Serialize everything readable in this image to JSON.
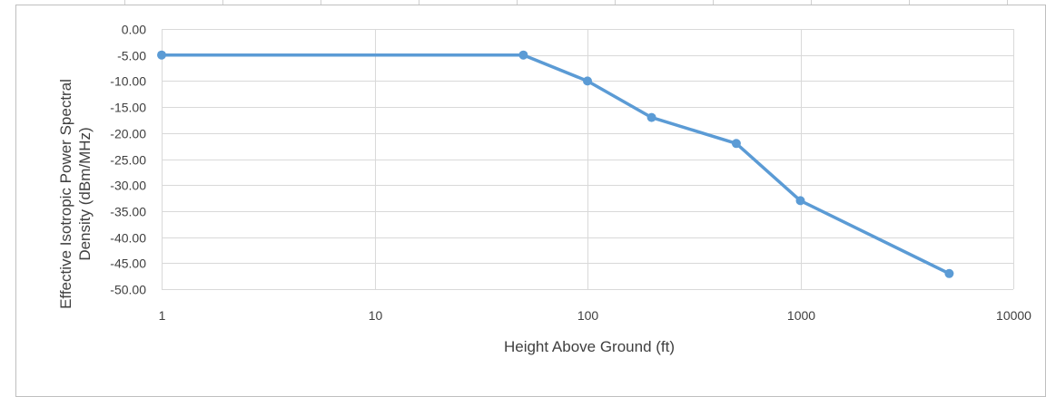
{
  "chart_data": {
    "type": "line",
    "title": "",
    "xlabel": "Height Above Ground (ft)",
    "ylabel_lines": [
      "Effective Isotropic Power Spectral",
      "Density (dBm/MHz)"
    ],
    "x_scale": "log",
    "xlim": [
      1,
      10000
    ],
    "ylim": [
      -50,
      0
    ],
    "x_ticks": [
      "1",
      "10",
      "100",
      "1000",
      "10000"
    ],
    "y_ticks": [
      "0.00",
      "-5.00",
      "-10.00",
      "-15.00",
      "-20.00",
      "-25.00",
      "-30.00",
      "-35.00",
      "-40.00",
      "-45.00",
      "-50.00"
    ],
    "grid": true,
    "series": [
      {
        "color": "#5b9bd5",
        "x": [
          1,
          50,
          100,
          200,
          500,
          1000,
          5000
        ],
        "y": [
          -5,
          -5,
          -10,
          -17,
          -22,
          -33,
          -47
        ]
      }
    ]
  }
}
